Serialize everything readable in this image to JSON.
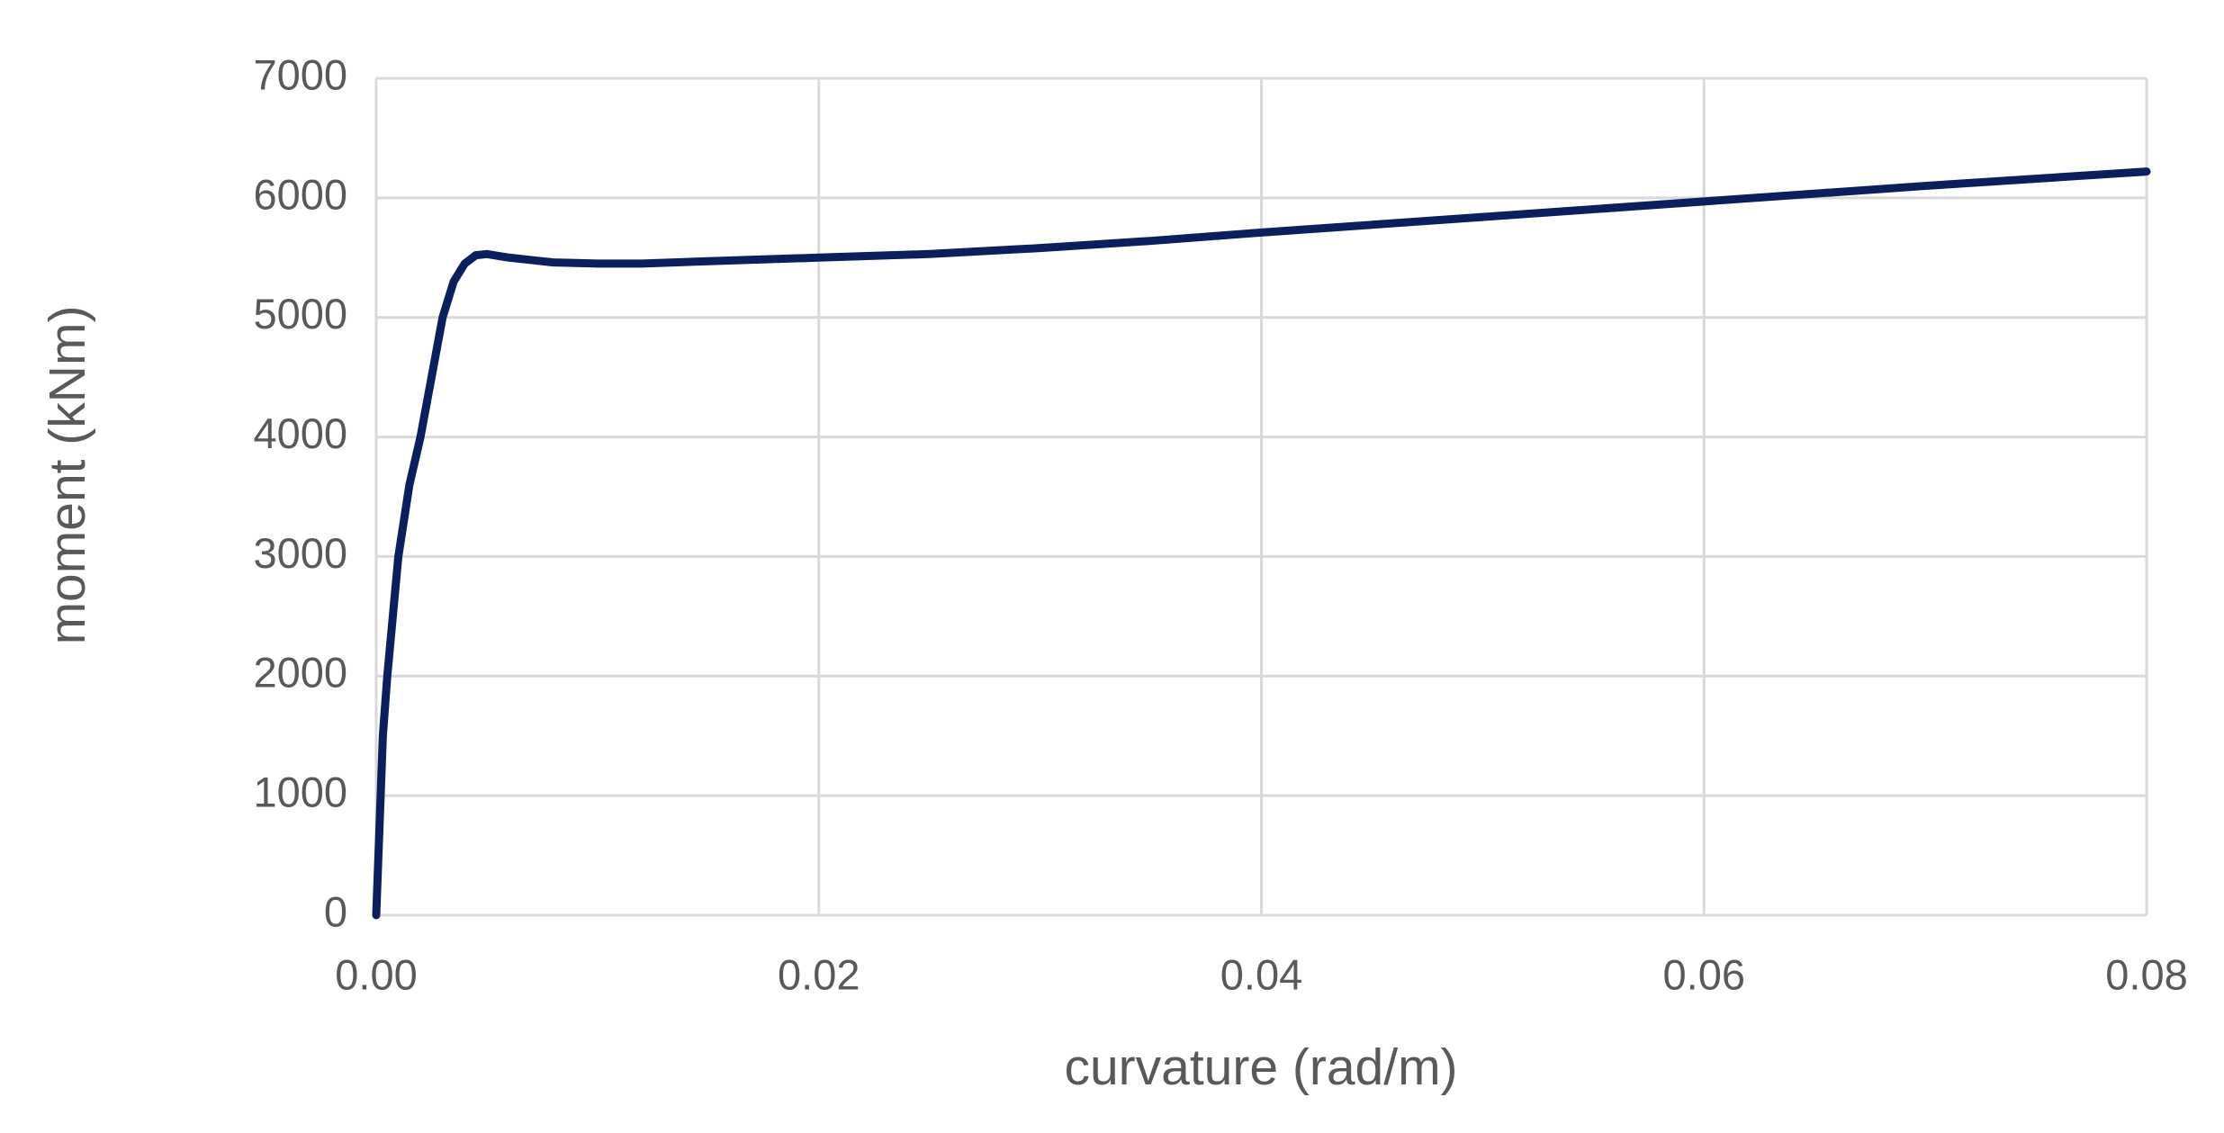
{
  "chart_data": {
    "type": "line",
    "x_label": "curvature (rad/m)",
    "y_label": "moment (kNm)",
    "x": [
      0,
      0.0003,
      0.0005,
      0.001,
      0.0015,
      0.002,
      0.0025,
      0.003,
      0.0035,
      0.004,
      0.0045,
      0.005,
      0.006,
      0.007,
      0.008,
      0.01,
      0.012,
      0.015,
      0.02,
      0.025,
      0.03,
      0.035,
      0.04,
      0.05,
      0.06,
      0.07,
      0.08
    ],
    "values": [
      0,
      1500,
      2000,
      3000,
      3600,
      4000,
      4500,
      5000,
      5300,
      5450,
      5520,
      5530,
      5500,
      5480,
      5460,
      5450,
      5450,
      5470,
      5500,
      5530,
      5580,
      5640,
      5710,
      5840,
      5970,
      6100,
      6220
    ],
    "color": "#0b1f5e",
    "xlim": [
      0,
      0.08
    ],
    "xticks": [
      {
        "value": 0,
        "label": "0.00"
      },
      0.02,
      0.04,
      0.06,
      0.08
    ],
    "ylim": [
      0,
      7000
    ],
    "yticks": [
      0,
      1000,
      2000,
      3000,
      4000,
      5000,
      6000,
      7000
    ],
    "grid": true
  }
}
